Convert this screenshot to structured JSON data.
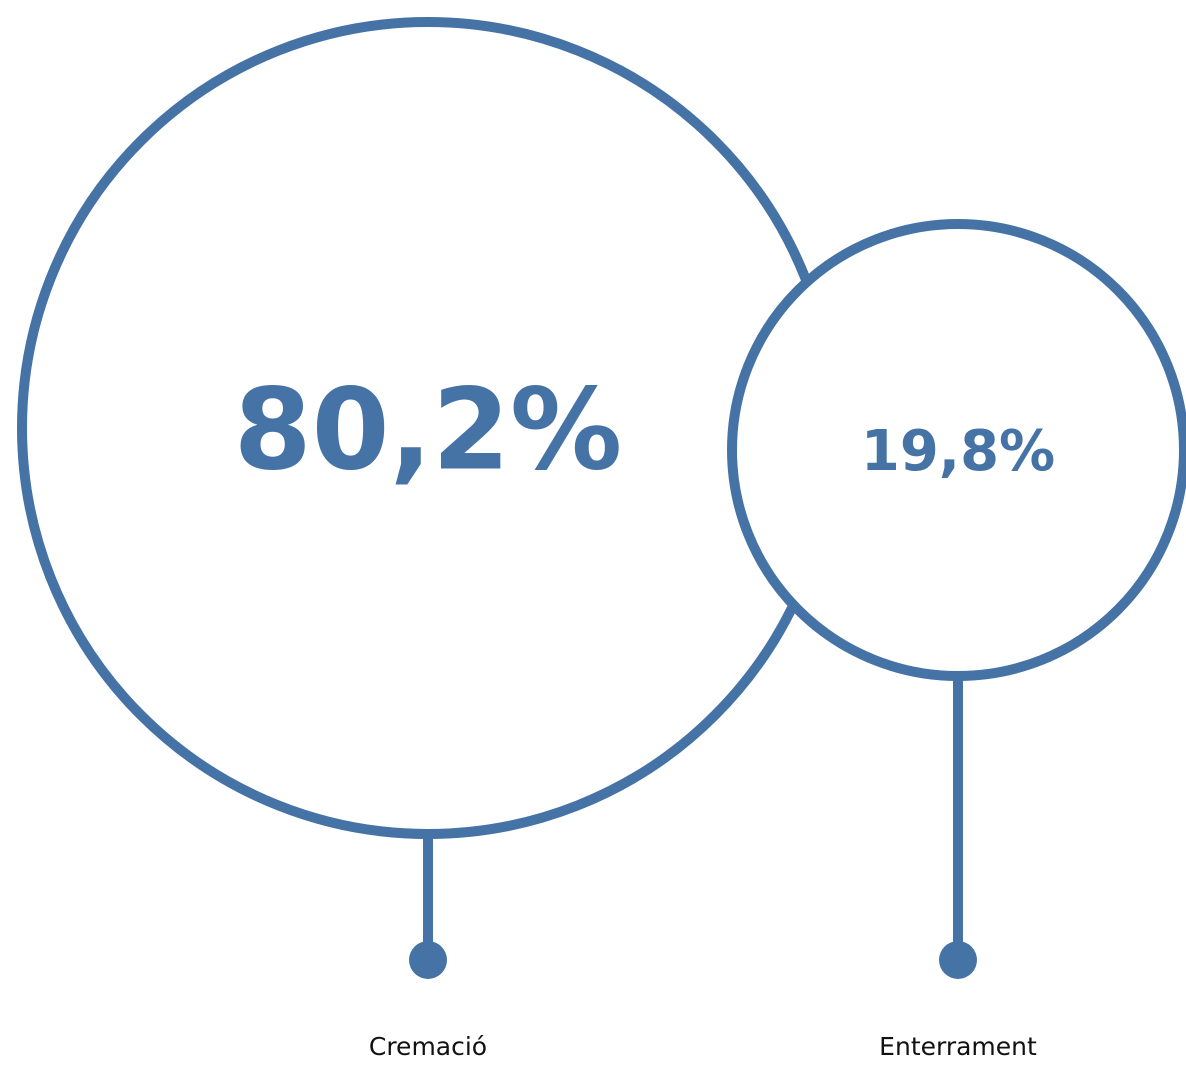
{
  "chart_data": {
    "type": "bubble",
    "unit": "%",
    "categories": [
      "Cremació",
      "Enterrament"
    ],
    "values": [
      80.2,
      19.8
    ],
    "value_labels": [
      "80,2%",
      "19,8%"
    ],
    "color": "#4673A6",
    "background": "#FFFFFF"
  }
}
